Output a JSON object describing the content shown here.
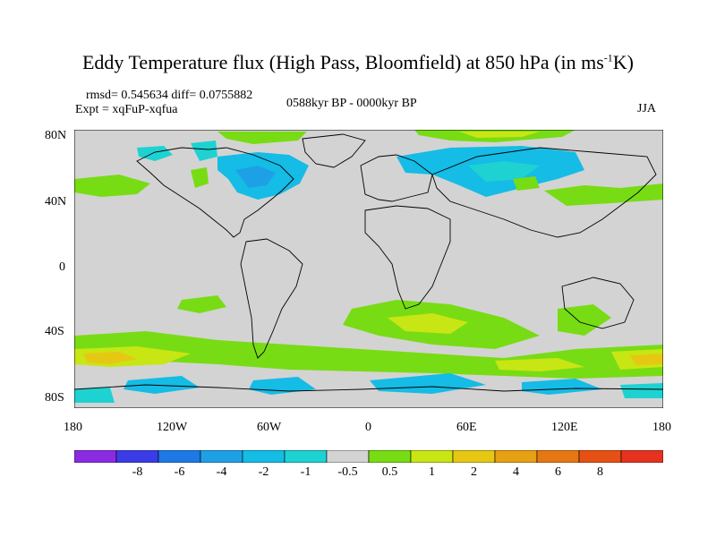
{
  "title": "Eddy Temperature flux (High Pass, Bloomfield) at 850 hPa (in ms",
  "title_sup": "-1",
  "title_end": "K)",
  "stats": "rmsd= 0.545634 diff= 0.0755882",
  "experiment": "Expt = xqFuP-xqfua",
  "period": "0588kyr BP - 0000kyr BP",
  "season": "JJA",
  "map": {
    "lat_labels": [
      "80N",
      "40N",
      "0",
      "40S",
      "80S"
    ],
    "lon_labels": [
      "180",
      "120W",
      "60W",
      "0",
      "60E",
      "120E",
      "180"
    ]
  },
  "colorbar": {
    "colors": [
      "#8a2be2",
      "#3c3ce6",
      "#1e78e6",
      "#1ea0e6",
      "#14bce6",
      "#1ed2d2",
      "#d3d3d3",
      "#78dc14",
      "#c8e614",
      "#e6c814",
      "#e6a014",
      "#e67814",
      "#e65014",
      "#e6321e"
    ],
    "labels": [
      "-8",
      "-6",
      "-4",
      "-2",
      "-1",
      "-0.5",
      "0.5",
      "1",
      "2",
      "4",
      "6",
      "8"
    ]
  },
  "palette": {
    "background": "#d3d3d3",
    "coast": "#000000"
  }
}
